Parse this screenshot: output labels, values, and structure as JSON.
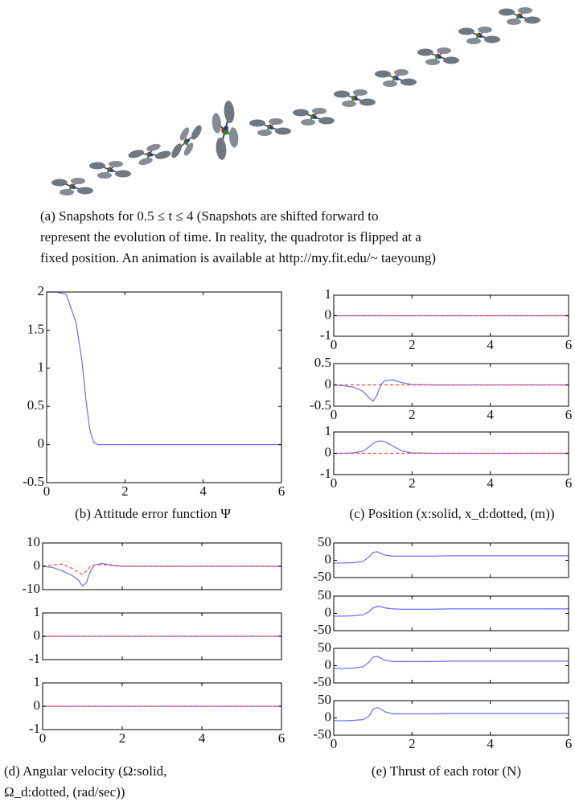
{
  "figure_a": {
    "caption_lines": [
      "(a) Snapshots for 0.5 ≤ t ≤ 4 (Snapshots are shifted forward to",
      "represent the evolution of time. In reality, the quadrotor is flipped at a",
      "fixed position. An animation is available at http://my.fit.edu/~ taeyoung)"
    ]
  },
  "chart_data": [
    {
      "type": "line",
      "caption": [
        "(b) Attitude error function Ψ"
      ],
      "x": [
        0,
        0.25,
        0.5,
        0.75,
        0.9,
        1,
        1.1,
        1.2,
        1.3,
        1.5,
        1.75,
        2,
        2.5,
        3,
        4,
        5,
        6
      ],
      "xlim": [
        0,
        6
      ],
      "xticks": [
        0,
        2,
        4,
        6
      ],
      "subplots": [
        {
          "ylim": [
            -0.5,
            2
          ],
          "yticks": [
            -0.5,
            0,
            0.5,
            1,
            1.5,
            2
          ],
          "series": [
            {
              "color": "#6b6bff",
              "values": [
                2,
                2,
                1.97,
                1.6,
                1.1,
                0.6,
                0.2,
                0.03,
                0,
                0,
                0,
                0,
                0,
                0,
                0,
                0,
                0
              ]
            }
          ]
        }
      ]
    },
    {
      "type": "line",
      "caption": [
        "(c) Position (x:solid, x_d:dotted, (m))"
      ],
      "x": [
        0,
        0.25,
        0.5,
        0.75,
        0.9,
        1,
        1.1,
        1.2,
        1.3,
        1.5,
        1.75,
        2,
        2.5,
        3,
        4,
        5,
        6
      ],
      "xlim": [
        0,
        6
      ],
      "xticks": [
        0,
        2,
        4,
        6
      ],
      "subplots": [
        {
          "ylim": [
            -1,
            1
          ],
          "yticks": [
            -1,
            0,
            1
          ],
          "series": [
            {
              "color": "#6b6bff",
              "values": [
                0,
                0,
                0,
                0,
                0,
                0,
                0,
                0,
                0,
                0,
                0,
                0,
                0,
                0,
                0,
                0,
                0
              ]
            },
            {
              "color": "#ff4040",
              "dashed": true,
              "values": [
                0,
                0,
                0,
                0,
                0,
                0,
                0,
                0,
                0,
                0,
                0,
                0,
                0,
                0,
                0,
                0,
                0
              ]
            }
          ]
        },
        {
          "ylim": [
            -0.5,
            0.5
          ],
          "yticks": [
            -0.5,
            0,
            0.5
          ],
          "series": [
            {
              "color": "#6b6bff",
              "values": [
                0,
                -0.02,
                -0.05,
                -0.15,
                -0.3,
                -0.38,
                -0.25,
                0,
                0.1,
                0.12,
                0.05,
                0.01,
                0,
                0,
                0,
                0,
                0
              ]
            },
            {
              "color": "#ff4040",
              "dashed": true,
              "values": [
                0,
                0,
                0,
                0,
                0,
                0,
                0,
                0,
                0,
                0,
                0,
                0,
                0,
                0,
                0,
                0,
                0
              ]
            }
          ]
        },
        {
          "ylim": [
            -1,
            1
          ],
          "yticks": [
            -1,
            0,
            1
          ],
          "series": [
            {
              "color": "#6b6bff",
              "values": [
                0,
                0,
                0.02,
                0.1,
                0.3,
                0.45,
                0.55,
                0.58,
                0.55,
                0.35,
                0.1,
                0.02,
                0,
                0,
                0,
                0,
                0
              ]
            },
            {
              "color": "#ff4040",
              "dashed": true,
              "values": [
                0,
                0,
                0,
                0,
                0,
                0,
                0,
                0,
                0,
                0,
                0,
                0,
                0,
                0,
                0,
                0,
                0
              ]
            }
          ]
        }
      ]
    },
    {
      "type": "line",
      "caption": [
        "(d) Angular velocity (Ω:solid,",
        "Ω_d:dotted, (rad/sec))"
      ],
      "x": [
        0,
        0.25,
        0.5,
        0.75,
        0.9,
        1,
        1.1,
        1.2,
        1.3,
        1.5,
        1.75,
        2,
        2.5,
        3,
        4,
        5,
        6
      ],
      "xlim": [
        0,
        6
      ],
      "xticks": [
        0,
        2,
        4,
        6
      ],
      "subplots": [
        {
          "ylim": [
            -10,
            10
          ],
          "yticks": [
            -10,
            0,
            10
          ],
          "series": [
            {
              "color": "#6b6bff",
              "values": [
                0,
                -0.5,
                -2,
                -4,
                -6,
                -8.5,
                -7,
                -2,
                0.5,
                1.2,
                0.5,
                0,
                0,
                0,
                0,
                0,
                0
              ]
            },
            {
              "color": "#ff4040",
              "dashed": true,
              "values": [
                0,
                0.5,
                1,
                -1,
                -2.5,
                -3.5,
                -2,
                0,
                0.5,
                0.8,
                0.3,
                0,
                0,
                0,
                0,
                0,
                0
              ]
            }
          ]
        },
        {
          "ylim": [
            -1,
            1
          ],
          "yticks": [
            -1,
            0,
            1
          ],
          "series": [
            {
              "color": "#6b6bff",
              "values": [
                0,
                0,
                0,
                0,
                0,
                0,
                0,
                0,
                0,
                0,
                0,
                0,
                0,
                0,
                0,
                0,
                0
              ]
            },
            {
              "color": "#ff4040",
              "dashed": true,
              "values": [
                0,
                0,
                0,
                0,
                0,
                0,
                0,
                0,
                0,
                0,
                0,
                0,
                0,
                0,
                0,
                0,
                0
              ]
            }
          ]
        },
        {
          "ylim": [
            -1,
            1
          ],
          "yticks": [
            -1,
            0,
            1
          ],
          "series": [
            {
              "color": "#6b6bff",
              "values": [
                0,
                0,
                0,
                0,
                0,
                0,
                0,
                0,
                0,
                0,
                0,
                0,
                0,
                0,
                0,
                0,
                0
              ]
            },
            {
              "color": "#ff4040",
              "dashed": true,
              "values": [
                0,
                0,
                0,
                0,
                0,
                0,
                0,
                0,
                0,
                0,
                0,
                0,
                0,
                0,
                0,
                0,
                0
              ]
            }
          ]
        }
      ]
    },
    {
      "type": "line",
      "caption": [
        "(e) Thrust of each rotor (N)"
      ],
      "x": [
        0,
        0.25,
        0.5,
        0.75,
        0.9,
        1,
        1.1,
        1.2,
        1.3,
        1.5,
        1.75,
        2,
        2.5,
        3,
        4,
        5,
        6
      ],
      "xlim": [
        0,
        6
      ],
      "xticks": [
        0,
        2,
        4,
        6
      ],
      "subplots": [
        {
          "ylim": [
            -50,
            50
          ],
          "yticks": [
            -50,
            0,
            50
          ],
          "series": [
            {
              "color": "#6b6bff",
              "values": [
                -8,
                -8,
                -7,
                -3,
                10,
                22,
                25,
                20,
                15,
                12,
                12,
                12,
                12,
                13,
                13,
                13,
                13
              ]
            }
          ]
        },
        {
          "ylim": [
            -50,
            50
          ],
          "yticks": [
            -50,
            0,
            50
          ],
          "series": [
            {
              "color": "#6b6bff",
              "values": [
                -8,
                -8,
                -7,
                -4,
                5,
                15,
                20,
                20,
                16,
                13,
                12,
                12,
                12,
                13,
                13,
                13,
                13
              ]
            }
          ]
        },
        {
          "ylim": [
            -50,
            50
          ],
          "yticks": [
            -50,
            0,
            50
          ],
          "series": [
            {
              "color": "#6b6bff",
              "values": [
                -8,
                -8,
                -7,
                -3,
                10,
                24,
                27,
                22,
                16,
                12,
                12,
                12,
                12,
                13,
                13,
                13,
                13
              ]
            }
          ]
        },
        {
          "ylim": [
            -50,
            50
          ],
          "yticks": [
            -50,
            0,
            50
          ],
          "series": [
            {
              "color": "#6b6bff",
              "values": [
                -8,
                -8,
                -7,
                -5,
                5,
                25,
                30,
                26,
                18,
                12,
                12,
                12,
                12,
                13,
                13,
                13,
                13
              ]
            }
          ]
        }
      ]
    }
  ]
}
